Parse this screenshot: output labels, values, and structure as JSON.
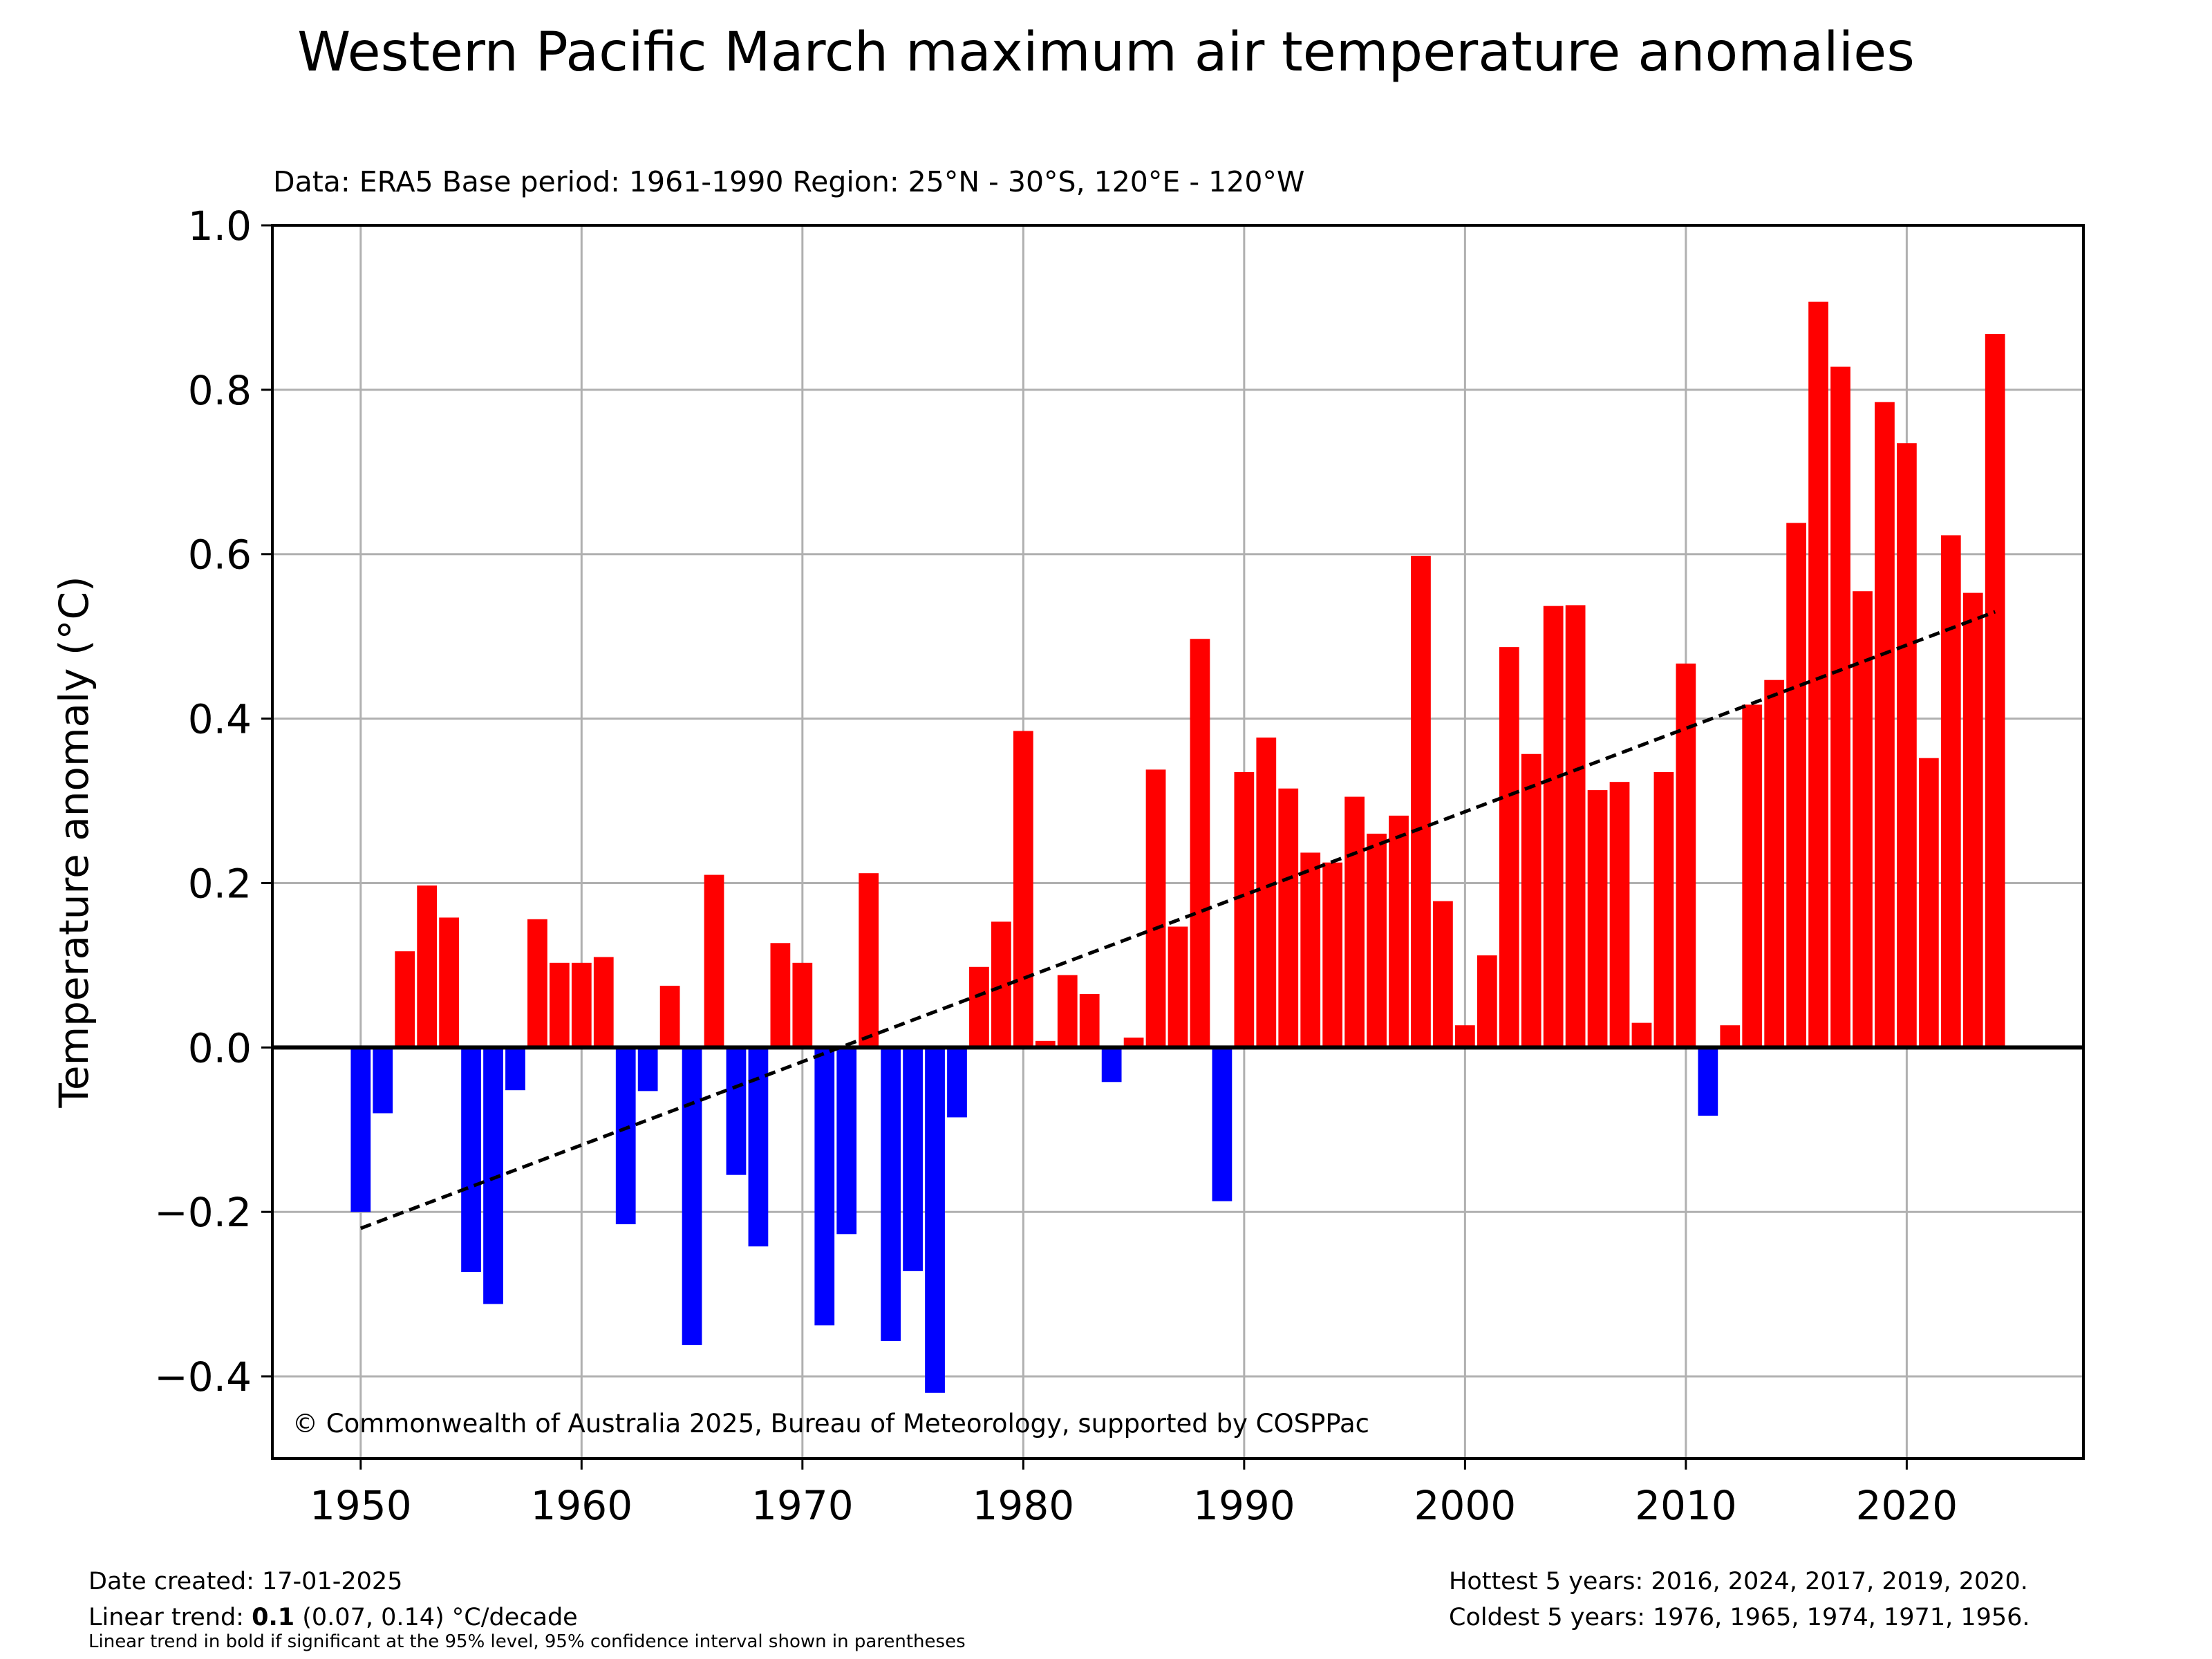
{
  "chart_data": {
    "type": "bar",
    "title": "Western Pacific March maximum air temperature anomalies",
    "subtitle": "Data: ERA5  Base period: 1961-1990  Region: 25°N - 30°S, 120°E - 120°W",
    "xlabel": "",
    "ylabel": "Temperature anomaly (°C)",
    "ylim": [
      -0.5,
      1.0
    ],
    "xlim": [
      1946,
      2028
    ],
    "yticks": [
      "1.0",
      "0.8",
      "0.6",
      "0.4",
      "0.2",
      "0.0",
      "−0.2",
      "−0.4"
    ],
    "xticks": [
      "1950",
      "1960",
      "1970",
      "1980",
      "1990",
      "2000",
      "2010",
      "2020"
    ],
    "grid": true,
    "positive_color": "#ff0000",
    "negative_color": "#0000ff",
    "trend_line": {
      "from": [
        1950,
        -0.22
      ],
      "to": [
        2024,
        0.53
      ]
    },
    "copyright": "© Commonwealth of Australia 2025, Bureau of Meteorology, supported by COSPPac",
    "x": [
      1950,
      1951,
      1952,
      1953,
      1954,
      1955,
      1956,
      1957,
      1958,
      1959,
      1960,
      1961,
      1962,
      1963,
      1964,
      1965,
      1966,
      1967,
      1968,
      1969,
      1970,
      1971,
      1972,
      1973,
      1974,
      1975,
      1976,
      1977,
      1978,
      1979,
      1980,
      1981,
      1982,
      1983,
      1984,
      1985,
      1986,
      1987,
      1988,
      1989,
      1990,
      1991,
      1992,
      1993,
      1994,
      1995,
      1996,
      1997,
      1998,
      1999,
      2000,
      2001,
      2002,
      2003,
      2004,
      2005,
      2006,
      2007,
      2008,
      2009,
      2010,
      2011,
      2012,
      2013,
      2014,
      2015,
      2016,
      2017,
      2018,
      2019,
      2020,
      2021,
      2022,
      2023,
      2024
    ],
    "values": [
      -0.2,
      -0.08,
      0.117,
      0.197,
      0.158,
      -0.273,
      -0.312,
      -0.052,
      0.156,
      0.103,
      0.103,
      0.11,
      -0.215,
      -0.053,
      0.075,
      -0.362,
      0.21,
      -0.155,
      -0.242,
      0.127,
      0.103,
      -0.338,
      -0.227,
      0.212,
      -0.357,
      -0.272,
      -0.42,
      -0.085,
      0.098,
      0.153,
      0.385,
      0.008,
      0.088,
      0.065,
      -0.042,
      0.012,
      0.338,
      0.147,
      0.497,
      -0.187,
      0.335,
      0.377,
      0.315,
      0.237,
      0.225,
      0.305,
      0.26,
      0.282,
      0.598,
      0.178,
      0.027,
      0.112,
      0.487,
      0.357,
      0.537,
      0.538,
      0.313,
      0.323,
      0.03,
      0.335,
      0.467,
      -0.083,
      0.027,
      0.417,
      0.447,
      0.638,
      0.907,
      0.828,
      0.555,
      0.785,
      0.735,
      0.352,
      0.623,
      0.553,
      0.868
    ]
  },
  "footer": {
    "date_created": "Date created: 17-01-2025",
    "trend_prefix": "Linear trend: ",
    "trend_value": "0.1",
    "trend_suffix": " (0.07, 0.14) °C/decade",
    "note": "Linear trend in bold if significant at the 95% level, 95% confidence interval shown in parentheses",
    "hottest": "Hottest 5 years: 2016, 2024, 2017, 2019, 2020.",
    "coldest": "Coldest 5 years: 1976, 1965, 1974, 1971, 1956."
  }
}
